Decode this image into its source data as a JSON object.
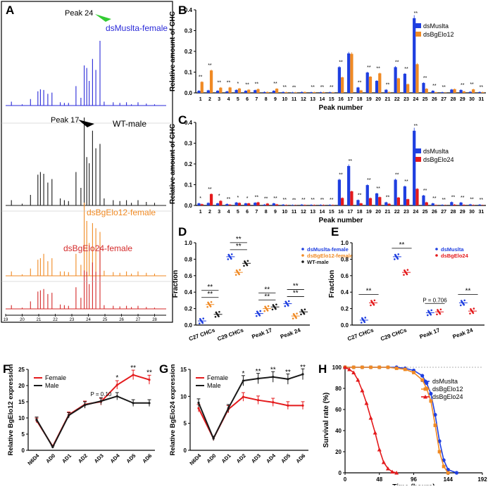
{
  "colors": {
    "blue": "#1f3fe0",
    "orange": "#f08a24",
    "red": "#e41a1c",
    "black": "#1a1a1a",
    "green": "#33cc33",
    "gray": "#888888"
  },
  "panels": {
    "A": {
      "letter": "A",
      "traces": [
        {
          "label": "dsMuslta-female",
          "color": "#2a2ad8",
          "peak_label": "Peak 24"
        },
        {
          "label": "WT-male",
          "color": "#1a1a1a",
          "peak_label": "Peak 17"
        },
        {
          "label": "dsBgElo12-female",
          "color": "#f08a24"
        },
        {
          "label": "dsBgElo24-female",
          "color": "#d42a2a"
        }
      ],
      "xticks": [
        "19",
        "20",
        "21",
        "22",
        "23",
        "24",
        "25",
        "26",
        "27",
        "28"
      ]
    },
    "B": {
      "letter": "B"
    },
    "C": {
      "letter": "C"
    },
    "D": {
      "letter": "D"
    },
    "E": {
      "letter": "E"
    },
    "F": {
      "letter": "F"
    },
    "G": {
      "letter": "G"
    },
    "H": {
      "letter": "H"
    }
  },
  "chart_data": [
    {
      "id": "B",
      "type": "bar",
      "xlabel": "Peak number",
      "ylabel": "Relative amount of CHC",
      "ylim": [
        0,
        0.4
      ],
      "yticks": [
        "0.0",
        "0.1",
        "0.2",
        "0.3",
        "0.4"
      ],
      "categories": [
        "1",
        "2",
        "3",
        "4",
        "5",
        "6",
        "7",
        "8",
        "9",
        "10",
        "11",
        "12",
        "13",
        "14",
        "15",
        "16",
        "17",
        "18",
        "19",
        "20",
        "21",
        "22",
        "23",
        "24",
        "25",
        "26",
        "27",
        "28",
        "29",
        "30",
        "31"
      ],
      "series": [
        {
          "name": "dsMuslta",
          "color": "#1f3fe0",
          "values": [
            0.01,
            0.012,
            0.01,
            0.007,
            0.014,
            0.01,
            0.013,
            0.004,
            0.01,
            0.004,
            0.002,
            0.004,
            0.003,
            0.003,
            0.003,
            0.124,
            0.19,
            0.026,
            0.098,
            0.058,
            0.015,
            0.124,
            0.092,
            0.36,
            0.048,
            0.01,
            0.003,
            0.016,
            0.014,
            0.005,
            0.004
          ]
        },
        {
          "name": "dsBgElo12",
          "color": "#f08a24",
          "values": [
            0.053,
            0.108,
            0.025,
            0.026,
            0.021,
            0.015,
            0.018,
            0.004,
            0.02,
            0.003,
            0.002,
            0.004,
            0.003,
            0.003,
            0.002,
            0.075,
            0.188,
            0.012,
            0.078,
            0.094,
            0.004,
            0.07,
            0.042,
            0.138,
            0.02,
            0.003,
            0.001,
            0.018,
            0.007,
            0.017,
            0.003
          ]
        }
      ],
      "annotations": [
        "**",
        "**",
        "**",
        "**",
        "*",
        "**",
        "**",
        "",
        "**",
        "**",
        "**",
        "",
        "**",
        "**",
        "**",
        "**",
        "",
        "**",
        "**",
        "**",
        "**",
        "**",
        "**",
        "**",
        "**",
        "**",
        "**",
        "",
        "**",
        "**",
        "**"
      ]
    },
    {
      "id": "C",
      "type": "bar",
      "xlabel": "Peak number",
      "ylabel": "Relative amount of CHC",
      "ylim": [
        0,
        0.4
      ],
      "yticks": [
        "0.0",
        "0.1",
        "0.2",
        "0.3",
        "0.4"
      ],
      "categories": [
        "1",
        "2",
        "3",
        "4",
        "5",
        "6",
        "7",
        "8",
        "9",
        "10",
        "11",
        "12",
        "13",
        "14",
        "15",
        "16",
        "17",
        "18",
        "19",
        "20",
        "21",
        "22",
        "23",
        "24",
        "25",
        "26",
        "27",
        "28",
        "29",
        "30",
        "31"
      ],
      "series": [
        {
          "name": "dsMuslta",
          "color": "#1f3fe0",
          "values": [
            0.01,
            0.012,
            0.01,
            0.007,
            0.014,
            0.01,
            0.013,
            0.004,
            0.01,
            0.004,
            0.002,
            0.004,
            0.003,
            0.003,
            0.003,
            0.124,
            0.19,
            0.026,
            0.098,
            0.058,
            0.015,
            0.124,
            0.092,
            0.36,
            0.048,
            0.01,
            0.003,
            0.016,
            0.014,
            0.005,
            0.004
          ]
        },
        {
          "name": "dsBgElo24",
          "color": "#e41a1c",
          "values": [
            0.006,
            0.055,
            0.022,
            0.004,
            0.012,
            0.01,
            0.015,
            0.009,
            0.005,
            0.002,
            0.001,
            0.002,
            0.002,
            0.002,
            0.002,
            0.036,
            0.068,
            0.01,
            0.035,
            0.04,
            0.008,
            0.038,
            0.03,
            0.08,
            0.015,
            0.002,
            0.001,
            0.004,
            0.003,
            0.002,
            0.001
          ]
        }
      ],
      "annotations": [
        "*",
        "**",
        "*",
        "**",
        "*",
        "*",
        "**",
        "**",
        "**",
        "**",
        "**",
        "**",
        "**",
        "**",
        "**",
        "**",
        "**",
        "**",
        "**",
        "**",
        "**",
        "**",
        "**",
        "**",
        "**",
        "**",
        "**",
        "**",
        "**",
        "**",
        "**"
      ]
    },
    {
      "id": "D",
      "type": "scatter",
      "ylabel": "Fraction",
      "ylim": [
        0,
        1.0
      ],
      "yticks": [
        "0.0",
        "0.2",
        "0.4",
        "0.6",
        "0.8",
        "1.0"
      ],
      "categories": [
        "C27 CHCs",
        "C29 CHCs",
        "Peak 17",
        "Peak 24"
      ],
      "series": [
        {
          "name": "dsMuslta-female",
          "color": "#1f3fe0",
          "values": [
            0.05,
            0.83,
            0.14,
            0.26
          ]
        },
        {
          "name": "dsBgElo12-female",
          "color": "#f08a24",
          "values": [
            0.25,
            0.64,
            0.2,
            0.11
          ]
        },
        {
          "name": "WT-male",
          "color": "#1a1a1a",
          "values": [
            0.13,
            0.75,
            0.22,
            0.16
          ]
        }
      ],
      "annotations": [
        "**",
        "**",
        "**",
        "**",
        "**",
        "**",
        "**",
        "**"
      ]
    },
    {
      "id": "E",
      "type": "scatter",
      "ylabel": "Fraction",
      "ylim": [
        0,
        1.0
      ],
      "yticks": [
        "0.0",
        "0.2",
        "0.4",
        "0.6",
        "0.8",
        "1.0"
      ],
      "categories": [
        "C27 CHCs",
        "C29 CHCs",
        "Peak 17",
        "Peak 24"
      ],
      "series": [
        {
          "name": "dsMuslta",
          "color": "#1f3fe0",
          "values": [
            0.06,
            0.83,
            0.15,
            0.27
          ]
        },
        {
          "name": "dsBgElo24",
          "color": "#e41a1c",
          "values": [
            0.27,
            0.64,
            0.16,
            0.17
          ]
        }
      ],
      "annotations": [
        "**",
        "**",
        "P = 0.706",
        "**"
      ]
    },
    {
      "id": "F",
      "type": "line",
      "ylabel": "Relative BgElo12 expression",
      "ylim": [
        0,
        25
      ],
      "yticks": [
        "0",
        "5",
        "10",
        "15",
        "20",
        "25"
      ],
      "categories": [
        "N6D4",
        "AD0",
        "AD1",
        "AD2",
        "AD3",
        "AD4",
        "AD5",
        "AD6"
      ],
      "series": [
        {
          "name": "Female",
          "color": "#e41a1c",
          "values": [
            9.2,
            1.2,
            11.0,
            14.2,
            15.0,
            20.2,
            23.3,
            21.8
          ]
        },
        {
          "name": "Male",
          "color": "#1a1a1a",
          "values": [
            9.5,
            1.0,
            10.8,
            14.0,
            15.2,
            16.7,
            14.6,
            14.6
          ]
        }
      ],
      "annotations": [
        "",
        "",
        "",
        "",
        "P = 0.10",
        "*",
        "**",
        "**"
      ]
    },
    {
      "id": "G",
      "type": "line",
      "ylabel": "Relative BgElo24 expression",
      "ylim": [
        0,
        15
      ],
      "yticks": [
        "0",
        "5",
        "10",
        "15"
      ],
      "categories": [
        "N6D4",
        "AD0",
        "AD1",
        "AD2",
        "AD3",
        "AD4",
        "AD5",
        "AD6"
      ],
      "series": [
        {
          "name": "Female",
          "color": "#e41a1c",
          "values": [
            7.8,
            2.2,
            7.6,
            9.9,
            9.3,
            8.9,
            8.3,
            8.3
          ]
        },
        {
          "name": "Male",
          "color": "#1a1a1a",
          "values": [
            8.8,
            2.2,
            7.8,
            12.9,
            13.3,
            13.6,
            13.2,
            14.1
          ]
        }
      ],
      "annotations": [
        "",
        "",
        "",
        "*",
        "**",
        "**",
        "**",
        "**"
      ]
    },
    {
      "id": "H",
      "type": "line",
      "xlabel": "Time (hours)",
      "ylabel": "Survival rate (%)",
      "xlim": [
        0,
        192
      ],
      "ylim": [
        0,
        100
      ],
      "xticks": [
        "0",
        "48",
        "96",
        "144",
        "192"
      ],
      "yticks": [
        "0",
        "20",
        "40",
        "60",
        "80",
        "100"
      ],
      "series": [
        {
          "name": "dsMuslta",
          "color": "#1f3fe0",
          "x": [
            0,
            12,
            24,
            36,
            48,
            60,
            72,
            84,
            96,
            108,
            114,
            120,
            126,
            132,
            138,
            144,
            156
          ],
          "values": [
            100,
            100,
            100,
            100,
            100,
            100,
            100,
            99,
            97,
            92,
            85,
            75,
            55,
            30,
            12,
            3,
            0
          ]
        },
        {
          "name": "dsBgElo12",
          "color": "#f08a24",
          "x": [
            0,
            12,
            24,
            36,
            48,
            60,
            72,
            84,
            96,
            108,
            114,
            120,
            126,
            132,
            138,
            144
          ],
          "values": [
            100,
            100,
            100,
            100,
            100,
            100,
            99,
            98,
            95,
            88,
            80,
            68,
            45,
            20,
            6,
            0
          ]
        },
        {
          "name": "dsBgElo24",
          "color": "#e41a1c",
          "x": [
            0,
            6,
            12,
            18,
            24,
            30,
            36,
            42,
            48,
            54,
            60,
            66,
            72
          ],
          "values": [
            100,
            98,
            95,
            88,
            78,
            66,
            52,
            38,
            22,
            10,
            4,
            1,
            0
          ]
        }
      ]
    }
  ]
}
